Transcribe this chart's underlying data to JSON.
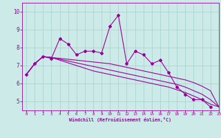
{
  "x": [
    0,
    1,
    2,
    3,
    4,
    5,
    6,
    7,
    8,
    9,
    10,
    11,
    12,
    13,
    14,
    15,
    16,
    17,
    18,
    19,
    20,
    21,
    22,
    23
  ],
  "line1": [
    6.5,
    7.1,
    7.5,
    7.4,
    8.5,
    8.2,
    7.6,
    7.8,
    7.8,
    7.7,
    9.2,
    9.8,
    7.1,
    7.8,
    7.6,
    7.1,
    7.3,
    6.6,
    5.8,
    5.4,
    5.1,
    5.1,
    4.7,
    null
  ],
  "line2": [
    6.5,
    7.1,
    7.5,
    7.45,
    7.4,
    7.35,
    7.3,
    7.25,
    7.2,
    7.15,
    7.1,
    7.0,
    6.9,
    6.8,
    6.7,
    6.6,
    6.5,
    6.4,
    6.3,
    6.2,
    6.05,
    5.85,
    5.6,
    4.7
  ],
  "line3": [
    6.5,
    7.1,
    7.5,
    7.45,
    7.35,
    7.25,
    7.15,
    7.05,
    6.95,
    6.85,
    6.75,
    6.65,
    6.55,
    6.45,
    6.35,
    6.25,
    6.15,
    6.05,
    5.95,
    5.8,
    5.6,
    5.4,
    5.1,
    4.7
  ],
  "line4": [
    6.5,
    7.1,
    7.5,
    7.45,
    7.3,
    7.15,
    7.0,
    6.85,
    6.7,
    6.6,
    6.5,
    6.4,
    6.3,
    6.2,
    6.1,
    6.0,
    5.9,
    5.8,
    5.65,
    5.5,
    5.3,
    5.1,
    4.85,
    4.7
  ],
  "color": "#990099",
  "bg_color": "#cceae8",
  "grid_color": "#aad4d2",
  "xlabel": "Windchill (Refroidissement éolien,°C)",
  "ylim": [
    4.5,
    10.5
  ],
  "xlim": [
    -0.5,
    23
  ],
  "yticks": [
    5,
    6,
    7,
    8,
    9,
    10
  ],
  "xticks": [
    0,
    1,
    2,
    3,
    4,
    5,
    6,
    7,
    8,
    9,
    10,
    11,
    12,
    13,
    14,
    15,
    16,
    17,
    18,
    19,
    20,
    21,
    22,
    23
  ]
}
